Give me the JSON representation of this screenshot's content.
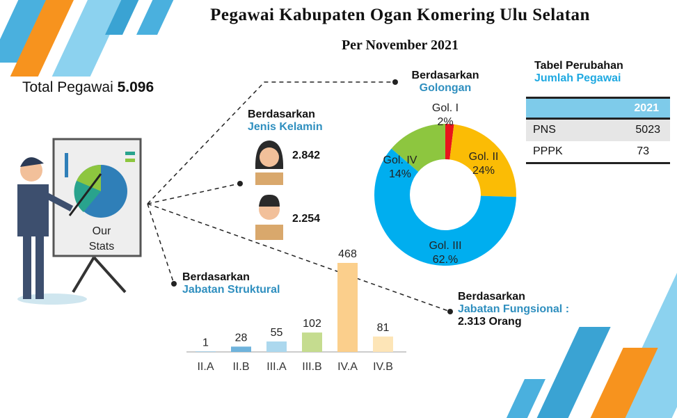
{
  "header": {
    "title": "Pegawai Kabupaten Ogan Komering Ulu Selatan",
    "subtitle": "Per November 2021"
  },
  "total": {
    "label": "Total Pegawai",
    "value": "5.096"
  },
  "illustration": {
    "board_text": "Our Stats"
  },
  "gender": {
    "heading": "Berdasarkan",
    "label": "Jenis Kelamin",
    "female": "2.842",
    "male": "2.254"
  },
  "fungsional": {
    "heading": "Berdasarkan",
    "label": "Jabatan Fungsional :",
    "value": "2.313 Orang"
  },
  "table": {
    "title": "Tabel Perubahan",
    "subtitle": "Jumlah Pegawai",
    "header": [
      "",
      "2021"
    ],
    "rows": [
      [
        "PNS",
        "5023"
      ],
      [
        "PPPK",
        "73"
      ]
    ]
  },
  "chart_data": [
    {
      "type": "pie",
      "heading": "Berdasarkan",
      "title": "Golongan",
      "donut": true,
      "labels": [
        "Gol. I",
        "Gol. II",
        "Gol. III",
        "Gol. IV"
      ],
      "values": [
        2,
        24,
        62,
        14
      ],
      "value_labels": [
        "2%",
        "24%",
        "62.%",
        "14%"
      ],
      "colors": [
        "#e8141b",
        "#fbbc05",
        "#00aeef",
        "#8dc63f"
      ]
    },
    {
      "type": "bar",
      "heading": "Berdasarkan",
      "title": "Jabatan Struktural",
      "categories": [
        "II.A",
        "II.B",
        "III.A",
        "III.B",
        "IV.A",
        "IV.B"
      ],
      "values": [
        1,
        28,
        55,
        102,
        468,
        81
      ],
      "colors": [
        "#5aa6d0",
        "#6fb3dc",
        "#acd8ee",
        "#c5dc8f",
        "#fbcf8c",
        "#fde5b7"
      ]
    }
  ]
}
